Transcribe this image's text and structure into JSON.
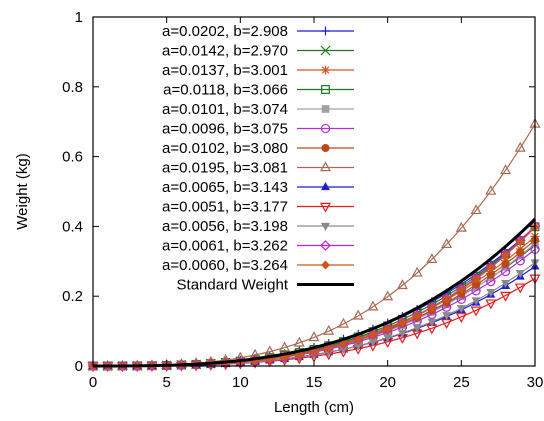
{
  "chart_data": {
    "type": "line",
    "xlabel": "Length (cm)",
    "ylabel": "Weight (kg)",
    "xlim": [
      0,
      30
    ],
    "ylim": [
      0,
      1
    ],
    "xticks": [
      "0",
      "5",
      "10",
      "15",
      "20",
      "25",
      "30"
    ],
    "yticks": [
      "0",
      "0.2",
      "0.4",
      "0.6",
      "0.8",
      "1"
    ],
    "grid": false,
    "legend_position": "top-left",
    "x": [
      0,
      1,
      2,
      3,
      4,
      5,
      6,
      7,
      8,
      9,
      10,
      11,
      12,
      13,
      14,
      15,
      16,
      17,
      18,
      19,
      20,
      21,
      22,
      23,
      24,
      25,
      26,
      27,
      28,
      29,
      30
    ],
    "series": [
      {
        "name": "a=0.0202, b=2.908",
        "a": 0.0202,
        "b": 2.908,
        "color": "#1f1fd6",
        "marker": "plus"
      },
      {
        "name": "a=0.0142, b=2.970",
        "a": 0.0142,
        "b": 2.97,
        "color": "#1a7a1a",
        "marker": "x"
      },
      {
        "name": "a=0.0137, b=3.001",
        "a": 0.0137,
        "b": 3.001,
        "color": "#d9541e",
        "marker": "star"
      },
      {
        "name": "a=0.0118, b=3.066",
        "a": 0.0118,
        "b": 3.066,
        "color": "#1a7a1a",
        "marker": "square-open"
      },
      {
        "name": "a=0.0101, b=3.074",
        "a": 0.0101,
        "b": 3.074,
        "color": "#a0a0a0",
        "marker": "square-filled"
      },
      {
        "name": "a=0.0096, b=3.075",
        "a": 0.0096,
        "b": 3.075,
        "color": "#b02fd6",
        "marker": "circle-open"
      },
      {
        "name": "a=0.0102, b=3.080",
        "a": 0.0102,
        "b": 3.08,
        "color": "#b84a1a",
        "marker": "circle-filled"
      },
      {
        "name": "a=0.0195, b=3.081",
        "a": 0.0195,
        "b": 3.081,
        "color": "#a86a52",
        "marker": "triangle-up-open"
      },
      {
        "name": "a=0.0065, b=3.143",
        "a": 0.0065,
        "b": 3.143,
        "color": "#1f1fd6",
        "marker": "triangle-up-filled"
      },
      {
        "name": "a=0.0051, b=3.177",
        "a": 0.0051,
        "b": 3.177,
        "color": "#e01e1e",
        "marker": "triangle-down-open"
      },
      {
        "name": "a=0.0056, b=3.198",
        "a": 0.0056,
        "b": 3.198,
        "color": "#8a8a8a",
        "marker": "triangle-down-filled"
      },
      {
        "name": "a=0.0061, b=3.262",
        "a": 0.0061,
        "b": 3.262,
        "color": "#c91ed6",
        "marker": "diamond-open"
      },
      {
        "name": "a=0.0060, b=3.264",
        "a": 0.006,
        "b": 3.264,
        "color": "#c9561a",
        "marker": "diamond-filled"
      },
      {
        "name": "Standard Weight",
        "a": 0.0156,
        "b": 3.0,
        "color": "#000000",
        "marker": "none",
        "line_width": 3
      }
    ]
  }
}
